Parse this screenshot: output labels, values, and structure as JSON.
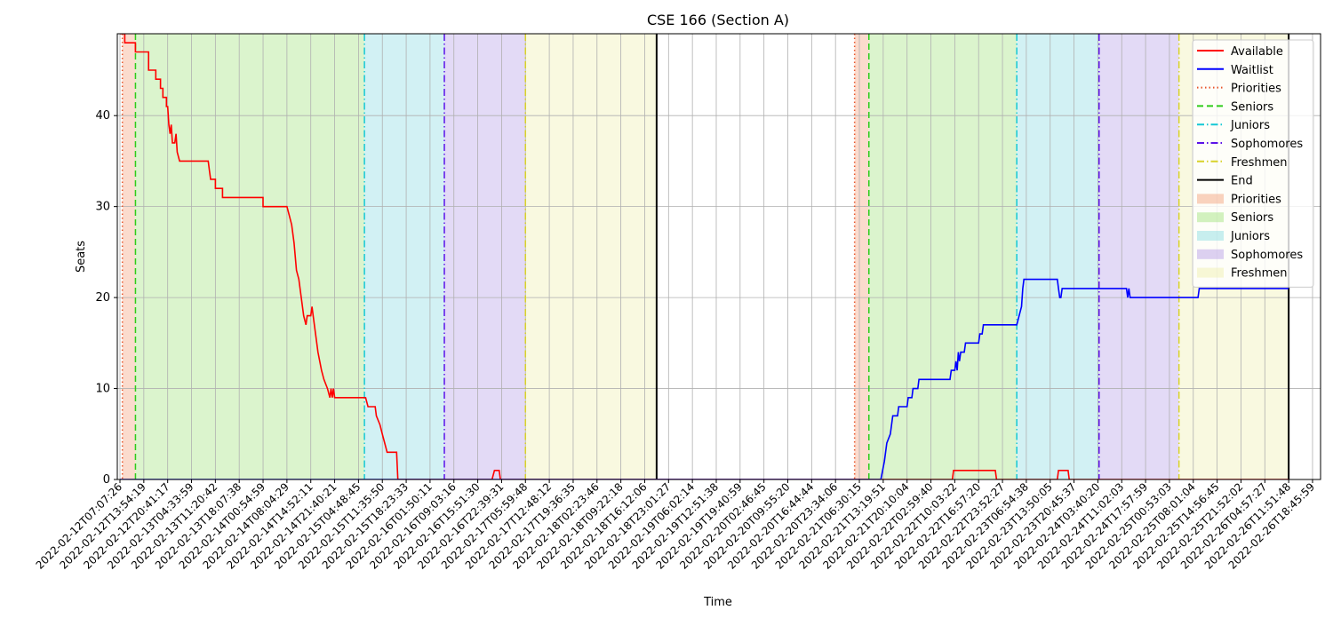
{
  "chart_data": {
    "type": "line",
    "title": "CSE 166 (Section A)",
    "xlabel": "Time",
    "ylabel": "Seats",
    "ylim": [
      0,
      49
    ],
    "yticks": [
      0,
      10,
      20,
      30,
      40
    ],
    "grid": true,
    "legend_position": "top-right",
    "x_tick_labels": [
      "2022-02-12T07:07:26",
      "2022-02-12T13:54:19",
      "2022-02-12T20:41:17",
      "2022-02-13T04:33:59",
      "2022-02-13T11:20:42",
      "2022-02-13T18:07:38",
      "2022-02-14T00:54:59",
      "2022-02-14T08:04:29",
      "2022-02-14T14:52:11",
      "2022-02-14T21:40:21",
      "2022-02-15T04:48:45",
      "2022-02-15T11:35:50",
      "2022-02-15T18:23:33",
      "2022-02-16T01:50:11",
      "2022-02-16T09:03:16",
      "2022-02-16T15:51:30",
      "2022-02-16T22:39:31",
      "2022-02-17T05:59:48",
      "2022-02-17T12:48:12",
      "2022-02-17T19:36:35",
      "2022-02-18T02:23:46",
      "2022-02-18T09:22:18",
      "2022-02-18T16:12:06",
      "2022-02-18T23:01:27",
      "2022-02-19T06:02:14",
      "2022-02-19T12:51:38",
      "2022-02-19T19:40:59",
      "2022-02-20T02:46:45",
      "2022-02-20T09:55:20",
      "2022-02-20T16:44:44",
      "2022-02-20T23:34:06",
      "2022-02-21T06:30:15",
      "2022-02-21T13:19:51",
      "2022-02-21T20:10:04",
      "2022-02-22T02:59:40",
      "2022-02-22T10:03:22",
      "2022-02-22T16:57:20",
      "2022-02-22T23:52:27",
      "2022-02-23T06:54:38",
      "2022-02-23T13:50:05",
      "2022-02-23T20:45:37",
      "2022-02-24T03:40:20",
      "2022-02-24T11:02:03",
      "2022-02-24T17:57:59",
      "2022-02-25T00:53:03",
      "2022-02-25T08:01:04",
      "2022-02-25T14:56:45",
      "2022-02-25T21:52:02",
      "2022-02-26T04:57:27",
      "2022-02-26T11:51:48",
      "2022-02-26T18:45:59"
    ],
    "phases": [
      {
        "name": "Priorities",
        "start": 0.1,
        "end": 0.65,
        "color": "#f4a582",
        "line_color": "#e8552a",
        "dash": "1.5,3"
      },
      {
        "name": "Seniors",
        "start": 0.65,
        "end": 10.25,
        "color": "#a6e383",
        "line_color": "#2ecc1a",
        "dash": "7,4"
      },
      {
        "name": "Juniors",
        "start": 10.25,
        "end": 13.6,
        "color": "#8fdde3",
        "line_color": "#14c8d6",
        "dash": "8,3,1.5,3"
      },
      {
        "name": "Sophomores",
        "start": 13.6,
        "end": 17.0,
        "color": "#b9a2e8",
        "line_color": "#5b12e8",
        "dash": "8,3,1.5,3"
      },
      {
        "name": "Freshmen",
        "start": 17.0,
        "end": 22.5,
        "color": "#eff0b2",
        "line_color": "#d8d22a",
        "dash": "8,3,1.5,3"
      },
      {
        "name": "Priorities",
        "start": 30.8,
        "end": 31.4,
        "color": "#f4a582",
        "line_color": "#e8552a",
        "dash": "1.5,3"
      },
      {
        "name": "Seniors",
        "start": 31.4,
        "end": 37.6,
        "color": "#a6e383",
        "line_color": "#2ecc1a",
        "dash": "7,4"
      },
      {
        "name": "Juniors",
        "start": 37.6,
        "end": 41.05,
        "color": "#8fdde3",
        "line_color": "#14c8d6",
        "dash": "8,3,1.5,3"
      },
      {
        "name": "Sophomores",
        "start": 41.05,
        "end": 44.4,
        "color": "#b9a2e8",
        "line_color": "#5b12e8",
        "dash": "8,3,1.5,3"
      },
      {
        "name": "Freshmen",
        "start": 44.4,
        "end": 49.0,
        "color": "#eff0b2",
        "line_color": "#d8d22a",
        "dash": "8,3,1.5,3"
      }
    ],
    "end_markers": [
      22.5,
      49.0
    ],
    "series": [
      {
        "name": "Available",
        "color": "#ff0000",
        "points": [
          [
            0,
            49
          ],
          [
            0.2,
            49
          ],
          [
            0.2,
            48
          ],
          [
            0.65,
            48
          ],
          [
            0.65,
            47
          ],
          [
            1.2,
            47
          ],
          [
            1.2,
            45
          ],
          [
            1.5,
            45
          ],
          [
            1.5,
            44
          ],
          [
            1.7,
            44
          ],
          [
            1.7,
            43
          ],
          [
            1.8,
            43
          ],
          [
            1.8,
            42
          ],
          [
            1.95,
            42
          ],
          [
            1.95,
            41
          ],
          [
            2.0,
            41
          ],
          [
            2.05,
            39
          ],
          [
            2.1,
            38
          ],
          [
            2.15,
            39
          ],
          [
            2.2,
            37
          ],
          [
            2.3,
            37
          ],
          [
            2.35,
            38
          ],
          [
            2.4,
            36
          ],
          [
            2.5,
            35
          ],
          [
            3.7,
            35
          ],
          [
            3.75,
            34
          ],
          [
            3.8,
            33
          ],
          [
            4.0,
            33
          ],
          [
            4.0,
            32
          ],
          [
            4.3,
            32
          ],
          [
            4.3,
            31
          ],
          [
            6.0,
            31
          ],
          [
            6.0,
            30
          ],
          [
            7.0,
            30
          ],
          [
            7.1,
            29
          ],
          [
            7.2,
            28
          ],
          [
            7.3,
            26
          ],
          [
            7.4,
            23
          ],
          [
            7.5,
            22
          ],
          [
            7.6,
            20
          ],
          [
            7.7,
            18
          ],
          [
            7.8,
            17
          ],
          [
            7.85,
            18
          ],
          [
            8.0,
            18
          ],
          [
            8.05,
            19
          ],
          [
            8.1,
            18
          ],
          [
            8.2,
            16
          ],
          [
            8.3,
            14
          ],
          [
            8.45,
            12
          ],
          [
            8.55,
            11
          ],
          [
            8.7,
            10
          ],
          [
            8.8,
            9
          ],
          [
            8.85,
            10
          ],
          [
            8.9,
            9
          ],
          [
            8.95,
            10
          ],
          [
            9.0,
            9
          ],
          [
            10.3,
            9
          ],
          [
            10.4,
            8
          ],
          [
            10.7,
            8
          ],
          [
            10.75,
            7
          ],
          [
            10.9,
            6
          ],
          [
            11.0,
            5
          ],
          [
            11.1,
            4
          ],
          [
            11.2,
            3
          ],
          [
            11.6,
            3
          ],
          [
            11.65,
            0
          ],
          [
            15.6,
            0
          ],
          [
            15.7,
            1
          ],
          [
            15.9,
            1
          ],
          [
            15.95,
            0
          ],
          [
            34.9,
            0
          ],
          [
            34.95,
            1
          ],
          [
            36.7,
            1
          ],
          [
            36.75,
            0
          ],
          [
            39.3,
            0
          ],
          [
            39.35,
            1
          ],
          [
            39.75,
            1
          ],
          [
            39.8,
            0
          ],
          [
            49.0,
            0
          ]
        ]
      },
      {
        "name": "Waitlist",
        "color": "#0000ff",
        "points": [
          [
            0,
            0
          ],
          [
            31.9,
            0
          ],
          [
            32.05,
            2
          ],
          [
            32.15,
            4
          ],
          [
            32.3,
            5
          ],
          [
            32.4,
            7
          ],
          [
            32.6,
            7
          ],
          [
            32.65,
            8
          ],
          [
            33.0,
            8
          ],
          [
            33.05,
            9
          ],
          [
            33.2,
            9
          ],
          [
            33.25,
            10
          ],
          [
            33.45,
            10
          ],
          [
            33.5,
            11
          ],
          [
            34.8,
            11
          ],
          [
            34.85,
            12
          ],
          [
            35.0,
            12
          ],
          [
            35.05,
            13
          ],
          [
            35.1,
            12
          ],
          [
            35.15,
            14
          ],
          [
            35.2,
            13
          ],
          [
            35.25,
            14
          ],
          [
            35.4,
            14
          ],
          [
            35.45,
            15
          ],
          [
            36.0,
            15
          ],
          [
            36.05,
            16
          ],
          [
            36.15,
            16
          ],
          [
            36.2,
            17
          ],
          [
            37.6,
            17
          ],
          [
            37.7,
            18
          ],
          [
            37.8,
            19
          ],
          [
            37.85,
            21
          ],
          [
            37.9,
            22
          ],
          [
            39.3,
            22
          ],
          [
            39.35,
            21
          ],
          [
            39.4,
            20
          ],
          [
            39.45,
            20
          ],
          [
            39.5,
            21
          ],
          [
            41.05,
            21
          ],
          [
            42.2,
            21
          ],
          [
            42.25,
            20
          ],
          [
            42.3,
            21
          ],
          [
            42.35,
            20
          ],
          [
            44.4,
            20
          ],
          [
            45.2,
            20
          ],
          [
            45.25,
            21
          ],
          [
            49.0,
            21
          ]
        ]
      }
    ],
    "legend": [
      {
        "label": "Available",
        "kind": "line",
        "color": "#ff0000"
      },
      {
        "label": "Waitlist",
        "kind": "line",
        "color": "#0000ff"
      },
      {
        "label": "Priorities",
        "kind": "line",
        "color": "#e8552a",
        "dash": "1.5,3"
      },
      {
        "label": "Seniors",
        "kind": "line",
        "color": "#2ecc1a",
        "dash": "7,4"
      },
      {
        "label": "Juniors",
        "kind": "line",
        "color": "#14c8d6",
        "dash": "8,3,1.5,3"
      },
      {
        "label": "Sophomores",
        "kind": "line",
        "color": "#5b12e8",
        "dash": "8,3,1.5,3"
      },
      {
        "label": "Freshmen",
        "kind": "line",
        "color": "#d8d22a",
        "dash": "8,3,1.5,3"
      },
      {
        "label": "End",
        "kind": "line",
        "color": "#000000"
      },
      {
        "label": "Priorities",
        "kind": "patch",
        "color": "#f4a582"
      },
      {
        "label": "Seniors",
        "kind": "patch",
        "color": "#a6e383"
      },
      {
        "label": "Juniors",
        "kind": "patch",
        "color": "#8fdde3"
      },
      {
        "label": "Sophomores",
        "kind": "patch",
        "color": "#b9a2e8"
      },
      {
        "label": "Freshmen",
        "kind": "patch",
        "color": "#eff0b2"
      }
    ]
  }
}
